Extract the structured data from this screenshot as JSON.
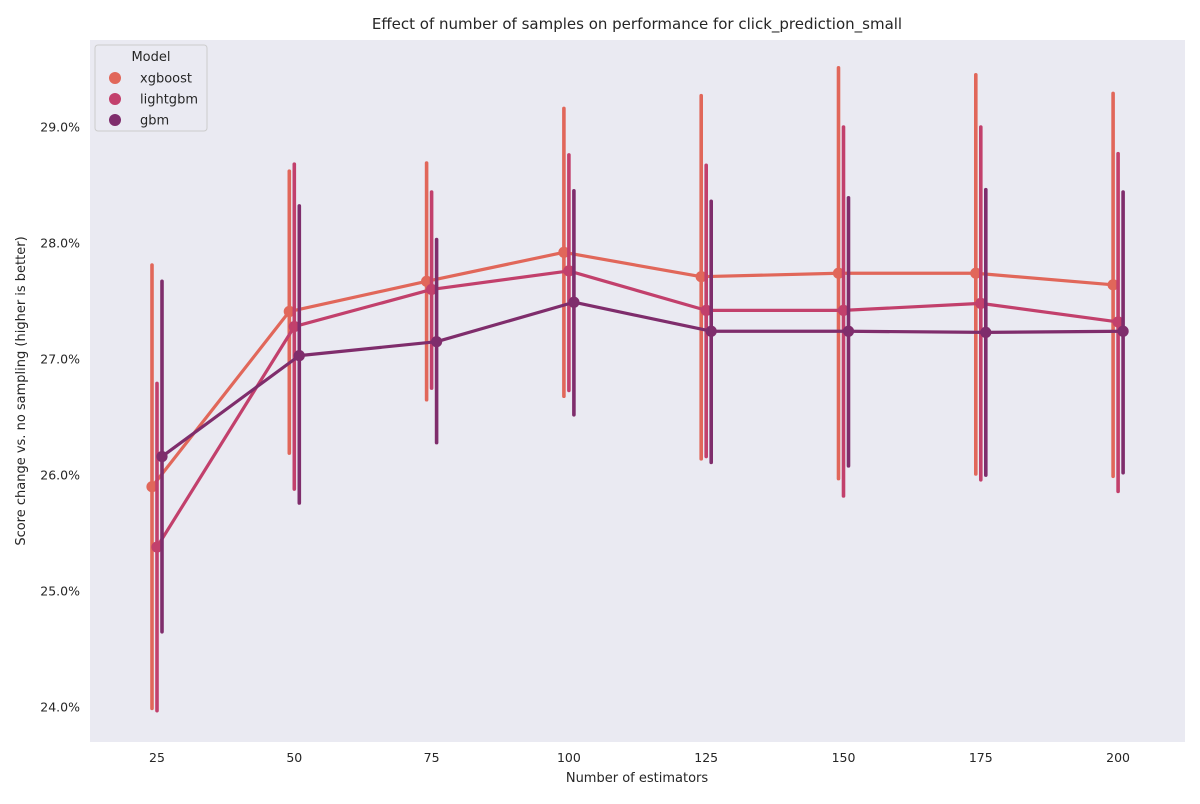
{
  "chart_data": {
    "type": "line",
    "title": "Effect of number of samples on performance for click_prediction_small",
    "xlabel": "Number of estimators",
    "ylabel": "Score change vs. no sampling (higher is better)",
    "categories": [
      "25",
      "50",
      "75",
      "100",
      "125",
      "150",
      "175",
      "200"
    ],
    "y_ticks": [
      24.0,
      25.0,
      26.0,
      27.0,
      28.0,
      29.0
    ],
    "y_tick_labels": [
      "24.0%",
      "25.0%",
      "26.0%",
      "27.0%",
      "28.0%",
      "29.0%"
    ],
    "ylim": [
      23.7,
      29.75
    ],
    "grid": false,
    "background": "#eaeaf2",
    "legend": {
      "title": "Model",
      "placement": "top-left"
    },
    "series": [
      {
        "name": "xgboost",
        "color": "#e1675a",
        "values": [
          25.9,
          27.41,
          27.67,
          27.92,
          27.71,
          27.74,
          27.74,
          27.64
        ],
        "ci_low": [
          23.99,
          26.19,
          26.65,
          26.68,
          26.14,
          25.97,
          26.01,
          25.99
        ],
        "ci_high": [
          27.81,
          28.62,
          28.69,
          29.16,
          29.27,
          29.51,
          29.45,
          29.29
        ]
      },
      {
        "name": "lightgbm",
        "color": "#c2406c",
        "values": [
          25.38,
          27.28,
          27.6,
          27.76,
          27.42,
          27.42,
          27.48,
          27.32
        ],
        "ci_low": [
          23.97,
          25.88,
          26.75,
          26.73,
          26.16,
          25.82,
          25.96,
          25.86
        ],
        "ci_high": [
          26.79,
          28.68,
          28.44,
          28.76,
          28.67,
          29.0,
          29.0,
          28.77
        ]
      },
      {
        "name": "gbm",
        "color": "#7f2d6c",
        "values": [
          26.16,
          27.03,
          27.15,
          27.49,
          27.24,
          27.24,
          27.23,
          27.24
        ],
        "ci_low": [
          24.65,
          25.76,
          26.28,
          26.52,
          26.11,
          26.08,
          26.0,
          26.02
        ],
        "ci_high": [
          27.67,
          28.32,
          28.03,
          28.45,
          28.36,
          28.39,
          28.46,
          28.44
        ]
      }
    ]
  }
}
